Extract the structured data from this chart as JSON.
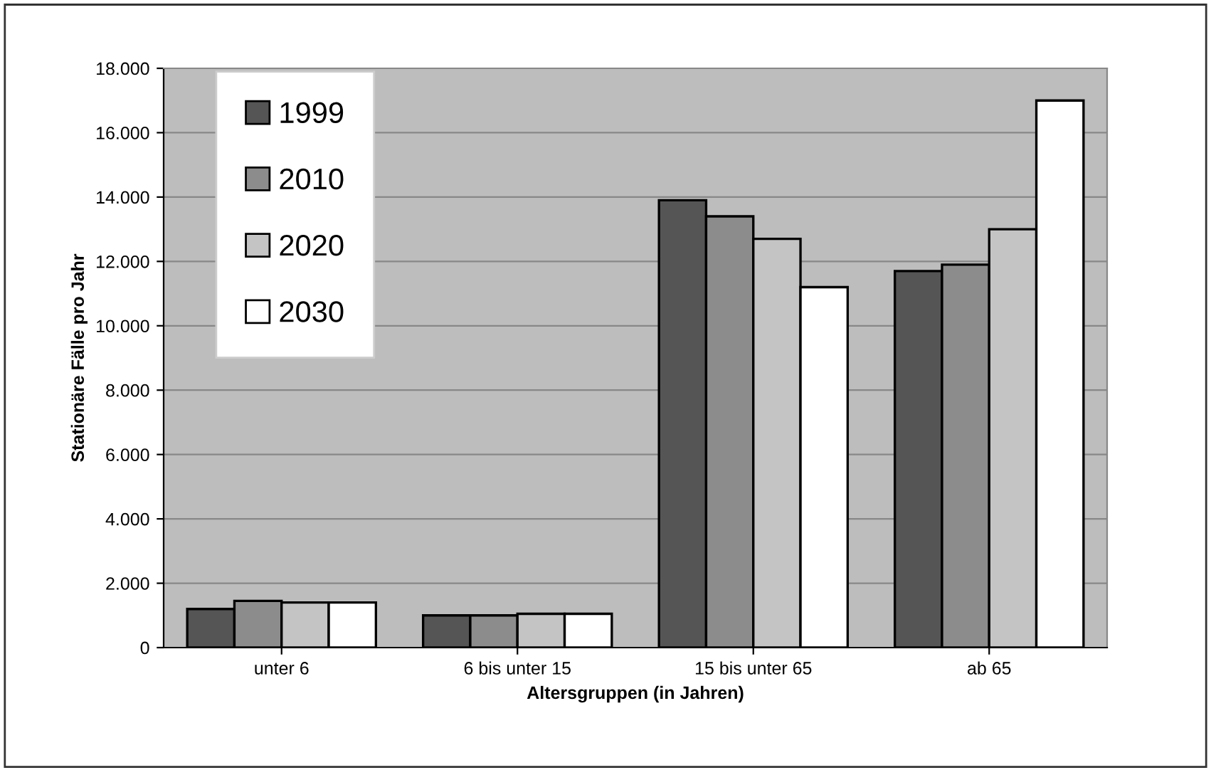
{
  "chart_data": {
    "type": "bar",
    "xlabel": "Altersgruppen (in Jahren)",
    "ylabel": "Stationäre Fälle pro Jahr",
    "categories": [
      "unter 6",
      "6 bis unter 15",
      "15 bis unter 65",
      "ab 65"
    ],
    "series": [
      {
        "name": "1999",
        "color": "#555555",
        "values": [
          1200,
          1000,
          13900,
          11700
        ]
      },
      {
        "name": "2010",
        "color": "#8c8c8c",
        "values": [
          1450,
          1000,
          13400,
          11900
        ]
      },
      {
        "name": "2020",
        "color": "#c4c4c4",
        "values": [
          1400,
          1050,
          12700,
          13000
        ]
      },
      {
        "name": "2030",
        "color": "#ffffff",
        "values": [
          1400,
          1050,
          11200,
          17000
        ]
      }
    ],
    "ylim": [
      0,
      18000
    ],
    "yticks": [
      0,
      {
        "value": 2000,
        "label": "2.000"
      },
      {
        "value": 4000,
        "label": "4.000"
      },
      {
        "value": 6000,
        "label": "6.000"
      },
      {
        "value": 8000,
        "label": "8.000"
      },
      {
        "value": 10000,
        "label": "10.000"
      },
      {
        "value": 12000,
        "label": "12.000"
      },
      {
        "value": 14000,
        "label": "14.000"
      },
      {
        "value": 16000,
        "label": "16.000"
      },
      {
        "value": 18000,
        "label": "18.000"
      }
    ],
    "grid": "y",
    "legend": "top left"
  }
}
